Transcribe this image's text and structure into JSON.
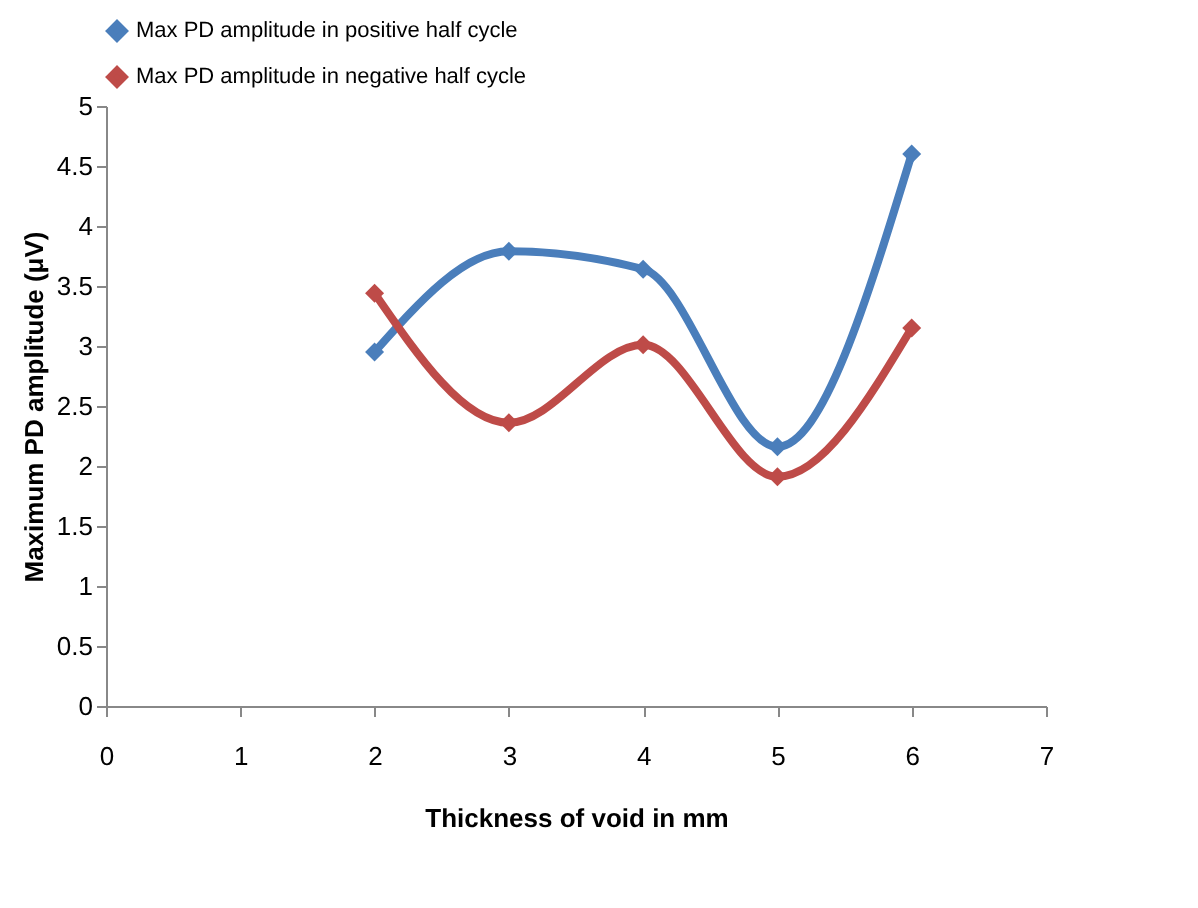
{
  "chart_data": {
    "type": "line",
    "xlabel": "Thickness of void in mm",
    "ylabel": "Maximum PD amplitude (μV)",
    "x": [
      2,
      3,
      4,
      5,
      6
    ],
    "series": [
      {
        "name": "Max PD amplitude in positive half cycle",
        "color": "#4a7ebb",
        "values": [
          2.95,
          3.79,
          3.64,
          2.16,
          4.6
        ]
      },
      {
        "name": "Max PD amplitude in negative half cycle",
        "color": "#be4b48",
        "values": [
          3.44,
          2.36,
          3.01,
          1.91,
          3.15
        ]
      }
    ],
    "xlim": [
      0,
      7
    ],
    "xticks": [
      0,
      1,
      2,
      3,
      4,
      5,
      6,
      7
    ],
    "ylim": [
      0,
      5
    ],
    "yticks": [
      0,
      0.5,
      1,
      1.5,
      2,
      2.5,
      3,
      3.5,
      4,
      4.5,
      5
    ],
    "grid": false,
    "legend": "top",
    "marker": "diamond",
    "line_style": "solid"
  }
}
